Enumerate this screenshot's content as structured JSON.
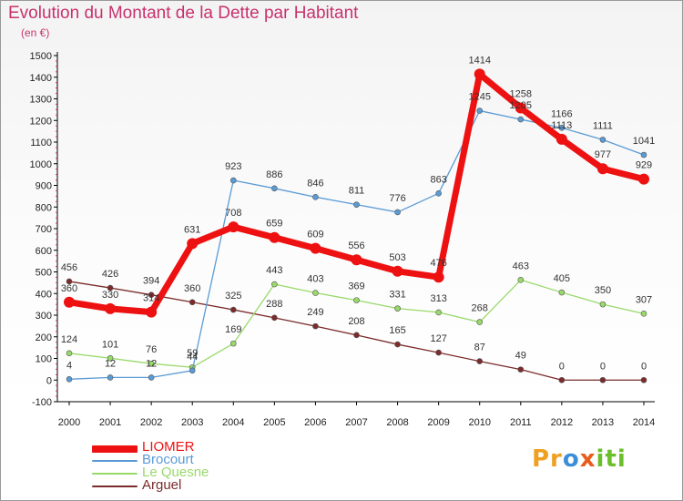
{
  "title": "Evolution du Montant de la Dette par Habitant",
  "subtitle": "(en €)",
  "logo": {
    "p1": "Pr",
    "p2": "o",
    "p3": "x",
    "p4": "iti"
  },
  "chart_data": {
    "type": "line",
    "title": "Evolution du Montant de la Dette par Habitant",
    "subtitle": "(en €)",
    "x": [
      "2000",
      "2001",
      "2002",
      "2003",
      "2004",
      "2005",
      "2006",
      "2007",
      "2008",
      "2009",
      "2010",
      "2011",
      "2012",
      "2013",
      "2014"
    ],
    "ylim": [
      -100,
      1500
    ],
    "yticks": [
      -100,
      0,
      100,
      200,
      300,
      400,
      500,
      600,
      700,
      800,
      900,
      1000,
      1100,
      1200,
      1300,
      1400,
      1500
    ],
    "grid": false,
    "legend_position": "bottom-left",
    "series": [
      {
        "name": "LIOMER",
        "color": "#ee1111",
        "values": [
          360,
          330,
          314,
          631,
          708,
          659,
          609,
          556,
          503,
          476,
          1414,
          1258,
          1113,
          977,
          929
        ],
        "labels": [
          "360",
          "330",
          "314",
          "631",
          "708",
          "659",
          "609",
          "556",
          "503",
          "476",
          "1414",
          "1258",
          "1113",
          "977",
          "929"
        ]
      },
      {
        "name": "Brocourt",
        "color": "#5b9bd5",
        "values": [
          4,
          12,
          12,
          44,
          923,
          886,
          846,
          811,
          776,
          863,
          1245,
          1205,
          1166,
          1111,
          1041
        ],
        "labels": [
          "4",
          "12",
          "12",
          "44",
          "923",
          "886",
          "846",
          "811",
          "776",
          "863",
          "1245",
          "1205",
          "1166",
          "1111",
          "1041"
        ]
      },
      {
        "name": "Le Quesne",
        "color": "#99d96a",
        "values": [
          124,
          101,
          76,
          59,
          169,
          443,
          403,
          369,
          331,
          313,
          268,
          463,
          405,
          350,
          307
        ],
        "labels": [
          "124",
          "101",
          "76",
          "59",
          "169",
          "443",
          "403",
          "369",
          "331",
          "313",
          "268",
          "463",
          "405",
          "350",
          "307"
        ]
      },
      {
        "name": "Arguel",
        "color": "#7b2b2b",
        "values": [
          456,
          426,
          394,
          360,
          325,
          288,
          249,
          208,
          165,
          127,
          87,
          49,
          0,
          0,
          0
        ],
        "labels": [
          "456",
          "426",
          "394",
          "360",
          "325",
          "288",
          "249",
          "208",
          "165",
          "127",
          "87",
          "49",
          "0",
          "0",
          "0"
        ]
      }
    ]
  }
}
